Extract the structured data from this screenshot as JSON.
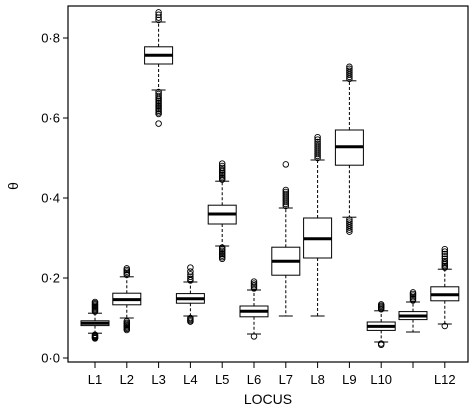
{
  "chart_data": {
    "type": "boxplot",
    "xlabel": "LOCUS",
    "ylabel": "θ",
    "ylim": [
      0.0,
      0.88
    ],
    "yticks": [
      0.0,
      0.2,
      0.4,
      0.6,
      0.8
    ],
    "ytick_labels": [
      "0·0",
      "0·2",
      "0·4",
      "0·6",
      "0·8"
    ],
    "categories": [
      "L1",
      "L2",
      "L3",
      "L4",
      "L5",
      "L6",
      "L7",
      "L8",
      "L9",
      "L10",
      "",
      "L12"
    ],
    "boxes": [
      {
        "label": "L1",
        "whisker_low": 0.062,
        "q1": 0.081,
        "median": 0.087,
        "q3": 0.093,
        "whisker_high": 0.112,
        "outliers_low": [
          0.058,
          0.056,
          0.054,
          0.052,
          0.05,
          0.049
        ],
        "outliers_high": [
          0.116,
          0.119,
          0.122,
          0.125,
          0.128,
          0.131,
          0.134,
          0.137,
          0.14
        ]
      },
      {
        "label": "L2",
        "whisker_low": 0.1,
        "q1": 0.133,
        "median": 0.146,
        "q3": 0.162,
        "whisker_high": 0.203,
        "outliers_low": [
          0.092,
          0.088,
          0.085,
          0.082,
          0.079,
          0.076,
          0.073,
          0.07
        ],
        "outliers_high": [
          0.208,
          0.212,
          0.216,
          0.22,
          0.224
        ]
      },
      {
        "label": "L3",
        "whisker_low": 0.67,
        "q1": 0.735,
        "median": 0.757,
        "q3": 0.778,
        "whisker_high": 0.84,
        "outliers_low": [
          0.665,
          0.66,
          0.655,
          0.65,
          0.646,
          0.642,
          0.638,
          0.634,
          0.63,
          0.626,
          0.622,
          0.618,
          0.614,
          0.61,
          0.586
        ],
        "outliers_high": [
          0.845,
          0.851,
          0.858,
          0.864
        ]
      },
      {
        "label": "L4",
        "whisker_low": 0.105,
        "q1": 0.137,
        "median": 0.148,
        "q3": 0.161,
        "whisker_high": 0.19,
        "outliers_low": [
          0.1,
          0.097,
          0.094,
          0.091
        ],
        "outliers_high": [
          0.194,
          0.198,
          0.203,
          0.209,
          0.216,
          0.226
        ]
      },
      {
        "label": "L5",
        "whisker_low": 0.28,
        "q1": 0.335,
        "median": 0.36,
        "q3": 0.382,
        "whisker_high": 0.442,
        "outliers_low": [
          0.276,
          0.272,
          0.268,
          0.264,
          0.26,
          0.256,
          0.252,
          0.248
        ],
        "outliers_high": [
          0.446,
          0.45,
          0.454,
          0.458,
          0.462,
          0.466,
          0.47,
          0.475,
          0.48,
          0.486
        ]
      },
      {
        "label": "L6",
        "whisker_low": 0.06,
        "q1": 0.103,
        "median": 0.117,
        "q3": 0.13,
        "whisker_high": 0.17,
        "outliers_low": [
          0.054
        ],
        "outliers_high": [
          0.174,
          0.178,
          0.182,
          0.186,
          0.191
        ]
      },
      {
        "label": "L7",
        "whisker_low": 0.105,
        "q1": 0.207,
        "median": 0.242,
        "q3": 0.277,
        "whisker_high": 0.375,
        "outliers_low": [],
        "outliers_high": [
          0.38,
          0.385,
          0.39,
          0.395,
          0.4,
          0.405,
          0.41,
          0.415,
          0.42,
          0.484
        ]
      },
      {
        "label": "L8",
        "whisker_low": 0.105,
        "q1": 0.25,
        "median": 0.298,
        "q3": 0.35,
        "whisker_high": 0.495,
        "outliers_low": [],
        "outliers_high": [
          0.5,
          0.505,
          0.51,
          0.515,
          0.52,
          0.525,
          0.53,
          0.535,
          0.54,
          0.546,
          0.552
        ]
      },
      {
        "label": "L9",
        "whisker_low": 0.352,
        "q1": 0.482,
        "median": 0.528,
        "q3": 0.57,
        "whisker_high": 0.693,
        "outliers_low": [
          0.346,
          0.341,
          0.336,
          0.331,
          0.326,
          0.321,
          0.316
        ],
        "outliers_high": [
          0.698,
          0.703,
          0.708,
          0.713,
          0.718,
          0.723,
          0.728
        ]
      },
      {
        "label": "L10",
        "whisker_low": 0.04,
        "q1": 0.069,
        "median": 0.079,
        "q3": 0.09,
        "whisker_high": 0.118,
        "outliers_low": [
          0.036,
          0.033
        ],
        "outliers_high": [
          0.122,
          0.125,
          0.128,
          0.131,
          0.134
        ]
      },
      {
        "label": "",
        "whisker_low": 0.065,
        "q1": 0.096,
        "median": 0.105,
        "q3": 0.116,
        "whisker_high": 0.14,
        "outliers_low": [],
        "outliers_high": [
          0.144,
          0.148,
          0.152,
          0.156,
          0.16,
          0.164
        ]
      },
      {
        "label": "L12",
        "whisker_low": 0.085,
        "q1": 0.143,
        "median": 0.158,
        "q3": 0.178,
        "whisker_high": 0.222,
        "outliers_low": [
          0.08
        ],
        "outliers_high": [
          0.226,
          0.23,
          0.234,
          0.238,
          0.242,
          0.248,
          0.254,
          0.26,
          0.266,
          0.272
        ]
      }
    ],
    "grid": false,
    "legend": "none"
  }
}
